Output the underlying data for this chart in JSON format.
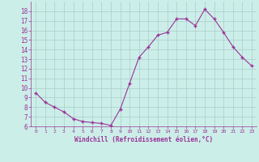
{
  "x": [
    0,
    1,
    2,
    3,
    4,
    5,
    6,
    7,
    8,
    9,
    10,
    11,
    12,
    13,
    14,
    15,
    16,
    17,
    18,
    19,
    20,
    21,
    22,
    23
  ],
  "y": [
    9.5,
    8.5,
    8.0,
    7.5,
    6.8,
    6.5,
    6.4,
    6.3,
    6.1,
    7.8,
    10.5,
    13.2,
    14.3,
    15.5,
    15.8,
    17.2,
    17.2,
    16.5,
    18.2,
    17.2,
    15.8,
    14.3,
    13.2,
    12.3
  ],
  "line_color": "#993399",
  "marker": "+",
  "marker_color": "#993399",
  "bg_color": "#cceee8",
  "grid_color": "#aacccc",
  "xlabel": "Windchill (Refroidissement éolien,°C)",
  "xlabel_color": "#993399",
  "tick_color": "#993399",
  "ylim": [
    6,
    19
  ],
  "xlim": [
    -0.5,
    23.5
  ],
  "yticks": [
    6,
    7,
    8,
    9,
    10,
    11,
    12,
    13,
    14,
    15,
    16,
    17,
    18
  ],
  "xticks": [
    0,
    1,
    2,
    3,
    4,
    5,
    6,
    7,
    8,
    9,
    10,
    11,
    12,
    13,
    14,
    15,
    16,
    17,
    18,
    19,
    20,
    21,
    22,
    23
  ]
}
